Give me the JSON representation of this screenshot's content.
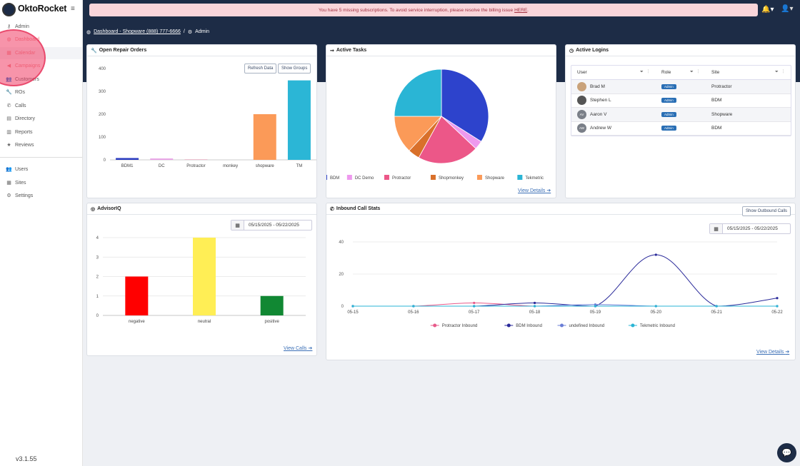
{
  "app": {
    "logo_name": "OktoRocket",
    "logo_tagline": "",
    "version": "v3.1.55"
  },
  "sidebar": {
    "items": [
      {
        "id": "admin",
        "label": "Admin",
        "icon": "key-icon",
        "glyph": "⚷",
        "top": 30,
        "dim": false
      },
      {
        "id": "dashboard",
        "label": "Dashboard",
        "icon": "dashboard-icon",
        "glyph": "◍",
        "top": 48,
        "dim": true
      },
      {
        "id": "calendar",
        "label": "Calendar",
        "icon": "calendar-icon",
        "glyph": "▦",
        "top": 67,
        "dim": true
      },
      {
        "id": "campaigns",
        "label": "Campaigns",
        "icon": "megaphone-icon",
        "glyph": "◀",
        "top": 85,
        "dim": true
      },
      {
        "id": "customers",
        "label": "Customers",
        "icon": "users-icon",
        "glyph": "👥",
        "top": 104,
        "dim": false
      },
      {
        "id": "ros",
        "label": "ROs",
        "icon": "wrench-icon",
        "glyph": "🔧",
        "top": 122,
        "dim": false
      },
      {
        "id": "calls",
        "label": "Calls",
        "icon": "phone-icon",
        "glyph": "✆",
        "top": 141,
        "dim": false
      },
      {
        "id": "directory",
        "label": "Directory",
        "icon": "book-icon",
        "glyph": "▤",
        "top": 159,
        "dim": false
      },
      {
        "id": "reports",
        "label": "Reports",
        "icon": "bar-chart-icon",
        "glyph": "▥",
        "top": 178,
        "dim": false
      },
      {
        "id": "reviews",
        "label": "Reviews",
        "icon": "star-icon",
        "glyph": "★",
        "top": 196,
        "dim": false
      },
      {
        "id": "users",
        "label": "Users",
        "icon": "users-icon",
        "glyph": "👥",
        "top": 230,
        "dim": false
      },
      {
        "id": "sites",
        "label": "Sites",
        "icon": "building-icon",
        "glyph": "▦",
        "top": 249,
        "dim": false
      },
      {
        "id": "settings",
        "label": "Settings",
        "icon": "gear-icon",
        "glyph": "⚙",
        "top": 267,
        "dim": false
      }
    ]
  },
  "alert": {
    "text": "You have 5 missing subscriptions. To avoid service interruption, please resolve the billing issue",
    "link": "HERE",
    "end": "."
  },
  "breadcrumb": {
    "home": "Dashboard - Shopware (888) 777-6666",
    "sep": "/",
    "current": "Admin"
  },
  "cards": {
    "repair_orders": {
      "title": "Open Repair Orders",
      "refresh": "Refresh Data",
      "groups": "Show Groups"
    },
    "active_tasks": {
      "title": "Active Tasks",
      "view": "View Details"
    },
    "active_logins": {
      "title": "Active Logins"
    },
    "advisoriq": {
      "title": "AdvisorIQ",
      "date_range": "05/15/2025 - 05/22/2025",
      "view": "View Calls"
    },
    "inbound": {
      "title": "Inbound Call Stats",
      "outbound": "Show Outbound Calls",
      "date_range": "05/15/2025 - 05/22/2025",
      "view": "View Details"
    }
  },
  "logins": {
    "headers": {
      "user": "User",
      "role": "Role",
      "site": "Site"
    },
    "rows": [
      {
        "name": "Brad M",
        "initials": "",
        "avatar_color": "#c9a27a",
        "role": "Admin",
        "site": "Protractor"
      },
      {
        "name": "Stephen L",
        "initials": "",
        "avatar_color": "#555",
        "role": "Admin",
        "site": "BDM"
      },
      {
        "name": "Aaron V",
        "initials": "AV",
        "avatar_color": "#7a7f88",
        "role": "Admin",
        "site": "Shopware"
      },
      {
        "name": "Andrew W",
        "initials": "AW",
        "avatar_color": "#7a7f88",
        "role": "Admin",
        "site": "BDM"
      }
    ]
  },
  "chart_data": [
    {
      "id": "repair_orders",
      "type": "bar",
      "categories": [
        "BDM1",
        "DC",
        "Protractor",
        "monkey",
        "shopware",
        "TM"
      ],
      "values": [
        8,
        6,
        1,
        0,
        200,
        348
      ],
      "colors": [
        "#2d3ec0",
        "#e9a3e6",
        "#e85a8a",
        "#c96a2a",
        "#fb9a58",
        "#2bb6d6"
      ],
      "ylim": [
        0,
        400
      ],
      "yticks": [
        0,
        100,
        200,
        300,
        400
      ],
      "grid": false
    },
    {
      "id": "active_tasks",
      "type": "pie",
      "labels": [
        "BDM",
        "DC Demo",
        "Protractor",
        "Shopmonkey",
        "Shopware",
        "Tekmetric"
      ],
      "values": [
        34,
        3,
        21,
        4,
        13,
        25
      ],
      "colors": [
        "#2d43cc",
        "#ee99ee",
        "#ec5788",
        "#d9702a",
        "#fb9a58",
        "#2ab5d5"
      ],
      "legend": "bottom"
    },
    {
      "id": "advisoriq",
      "type": "bar",
      "categories": [
        "negative",
        "neutral",
        "positive"
      ],
      "values": [
        2,
        4,
        1
      ],
      "colors": [
        "#ff0000",
        "#ffee55",
        "#118833"
      ],
      "ylim": [
        0,
        4
      ],
      "yticks": [
        0,
        1,
        2,
        3,
        4
      ],
      "grid": true
    },
    {
      "id": "inbound",
      "type": "line",
      "x": [
        "05-15",
        "05-16",
        "05-17",
        "05-18",
        "05-19",
        "05-20",
        "05-21",
        "05-22"
      ],
      "ylim": [
        0,
        40
      ],
      "yticks": [
        0,
        20,
        40
      ],
      "grid": true,
      "legend": "bottom",
      "series": [
        {
          "name": "Protractor Inbound",
          "color": "#e85a8a",
          "values": [
            0,
            0,
            2,
            0,
            0,
            0,
            0,
            0
          ]
        },
        {
          "name": "BDM Inbound",
          "color": "#2a2a9a",
          "values": [
            0,
            0,
            0,
            2,
            0,
            32,
            0,
            5
          ]
        },
        {
          "name": "undefined Inbound",
          "color": "#6a7ed6",
          "values": [
            0,
            0,
            0,
            0,
            1,
            0,
            0,
            0
          ]
        },
        {
          "name": "Tekmetric Inbound",
          "color": "#2ab5d5",
          "values": [
            0,
            0,
            0,
            0,
            0,
            0,
            0,
            0
          ]
        }
      ]
    }
  ]
}
